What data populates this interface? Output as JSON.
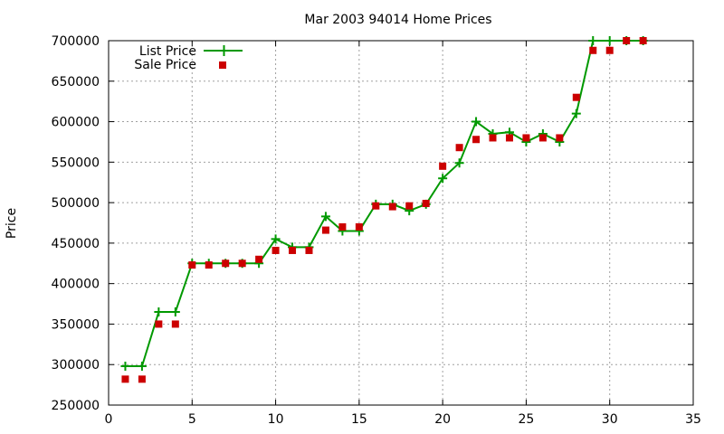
{
  "chart_data": {
    "type": "line",
    "title": "Mar 2003 94014 Home Prices",
    "xlabel": "",
    "ylabel": "Price",
    "xlim": [
      0,
      35
    ],
    "ylim": [
      250000,
      700000
    ],
    "x_ticks": [
      0,
      5,
      10,
      15,
      20,
      25,
      30,
      35
    ],
    "y_ticks": [
      250000,
      300000,
      350000,
      400000,
      450000,
      500000,
      550000,
      600000,
      650000,
      700000
    ],
    "x_tick_labels": [
      "0",
      "5",
      "10",
      "15",
      "20",
      "25",
      "30",
      "35"
    ],
    "y_tick_labels": [
      "250000",
      "300000",
      "350000",
      "400000",
      "450000",
      "500000",
      "550000",
      "600000",
      "650000",
      "700000"
    ],
    "grid": true,
    "legend_position": "top-left",
    "series": [
      {
        "name": "List Price",
        "style": "linespoints",
        "marker": "plus",
        "color": "#009900",
        "points": [
          [
            1,
            298000
          ],
          [
            2,
            298000
          ],
          [
            3,
            365000
          ],
          [
            4,
            365000
          ],
          [
            5,
            425000
          ],
          [
            6,
            425000
          ],
          [
            7,
            425000
          ],
          [
            8,
            425000
          ],
          [
            9,
            425000
          ],
          [
            10,
            455000
          ],
          [
            11,
            445000
          ],
          [
            12,
            445000
          ],
          [
            13,
            483000
          ],
          [
            14,
            465000
          ],
          [
            15,
            465000
          ],
          [
            16,
            498000
          ],
          [
            17,
            498000
          ],
          [
            18,
            490000
          ],
          [
            19,
            498000
          ],
          [
            20,
            530000
          ],
          [
            21,
            549000
          ],
          [
            22,
            600000
          ],
          [
            23,
            585000
          ],
          [
            24,
            587000
          ],
          [
            25,
            575000
          ],
          [
            26,
            585000
          ],
          [
            27,
            575000
          ],
          [
            28,
            610000
          ],
          [
            29,
            700000
          ],
          [
            30,
            700000
          ],
          [
            31,
            700000
          ],
          [
            32,
            700000
          ]
        ]
      },
      {
        "name": "Sale Price",
        "style": "points",
        "marker": "square",
        "color": "#cc0000",
        "points": [
          [
            1,
            282000
          ],
          [
            2,
            282000
          ],
          [
            3,
            350000
          ],
          [
            4,
            350000
          ],
          [
            5,
            423000
          ],
          [
            6,
            423000
          ],
          [
            7,
            425000
          ],
          [
            8,
            425000
          ],
          [
            9,
            430000
          ],
          [
            10,
            441000
          ],
          [
            11,
            441000
          ],
          [
            12,
            441000
          ],
          [
            13,
            466000
          ],
          [
            14,
            470000
          ],
          [
            15,
            470000
          ],
          [
            16,
            496000
          ],
          [
            17,
            495000
          ],
          [
            18,
            496000
          ],
          [
            19,
            499000
          ],
          [
            20,
            545000
          ],
          [
            21,
            568000
          ],
          [
            22,
            578000
          ],
          [
            23,
            580000
          ],
          [
            24,
            580000
          ],
          [
            25,
            580000
          ],
          [
            26,
            580000
          ],
          [
            27,
            580000
          ],
          [
            28,
            630000
          ],
          [
            29,
            688000
          ],
          [
            30,
            688000
          ],
          [
            31,
            700000
          ],
          [
            32,
            700000
          ]
        ]
      }
    ]
  }
}
